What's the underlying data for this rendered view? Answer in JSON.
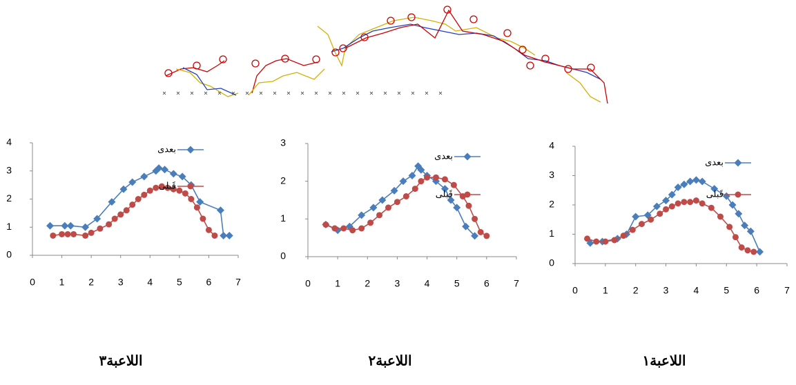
{
  "chart_data": [
    {
      "type": "line",
      "title": "اللاعبة٣",
      "xlim": [
        0,
        7
      ],
      "xticks": [
        0,
        1,
        2,
        3,
        4,
        5,
        6,
        7
      ],
      "ylim": [
        0,
        4
      ],
      "yticks": [
        0,
        1,
        2,
        3,
        4
      ],
      "grid": false,
      "series": [
        {
          "name": "بعدى",
          "color": "#4a7ebb",
          "marker": "diamond",
          "x": [
            0.6,
            1.1,
            1.3,
            1.8,
            2.2,
            2.7,
            3.1,
            3.4,
            3.8,
            4.2,
            4.3,
            4.5,
            4.8,
            5.1,
            5.4,
            5.7,
            6.4,
            6.5,
            6.7
          ],
          "values": [
            1.05,
            1.05,
            1.05,
            1.0,
            1.3,
            1.9,
            2.35,
            2.6,
            2.8,
            3.0,
            3.1,
            3.05,
            2.9,
            2.8,
            2.5,
            1.9,
            1.6,
            0.7,
            0.7
          ]
        },
        {
          "name": "قَبلى",
          "color": "#be4b48",
          "marker": "circle",
          "x": [
            0.7,
            1.0,
            1.2,
            1.4,
            1.8,
            2.0,
            2.3,
            2.6,
            2.8,
            3.0,
            3.2,
            3.4,
            3.6,
            3.8,
            4.0,
            4.2,
            4.4,
            4.6,
            4.8,
            5.0,
            5.2,
            5.4,
            5.6,
            5.8,
            6.0,
            6.2
          ],
          "values": [
            0.7,
            0.75,
            0.75,
            0.75,
            0.7,
            0.8,
            0.95,
            1.1,
            1.3,
            1.45,
            1.6,
            1.8,
            2.0,
            2.15,
            2.3,
            2.4,
            2.45,
            2.4,
            2.35,
            2.3,
            2.2,
            2.0,
            1.7,
            1.3,
            0.9,
            0.7
          ]
        }
      ]
    },
    {
      "type": "line",
      "title": "اللاعبة٢",
      "xlim": [
        0,
        7
      ],
      "xticks": [
        0,
        1,
        2,
        3,
        4,
        5,
        6,
        7
      ],
      "ylim": [
        0,
        3
      ],
      "yticks": [
        0,
        1,
        2,
        3
      ],
      "grid": false,
      "series": [
        {
          "name": "بعدى",
          "color": "#4a7ebb",
          "marker": "diamond",
          "x": [
            0.6,
            1.0,
            1.4,
            1.8,
            2.2,
            2.5,
            2.9,
            3.2,
            3.5,
            3.7,
            3.8,
            4.0,
            4.3,
            4.6,
            4.8,
            5.0,
            5.3,
            5.6
          ],
          "values": [
            0.85,
            0.7,
            0.8,
            1.1,
            1.3,
            1.5,
            1.75,
            2.0,
            2.15,
            2.4,
            2.3,
            2.15,
            2.0,
            1.8,
            1.5,
            1.3,
            0.8,
            0.55
          ]
        },
        {
          "name": "قَبلى",
          "color": "#be4b48",
          "marker": "circle",
          "x": [
            0.6,
            0.9,
            1.2,
            1.5,
            1.8,
            2.1,
            2.4,
            2.7,
            3.0,
            3.3,
            3.6,
            3.8,
            4.0,
            4.3,
            4.6,
            4.9,
            5.2,
            5.4,
            5.6,
            5.8,
            6.0
          ],
          "values": [
            0.85,
            0.75,
            0.75,
            0.7,
            0.75,
            0.9,
            1.1,
            1.3,
            1.45,
            1.6,
            1.8,
            2.0,
            2.1,
            2.1,
            2.05,
            1.9,
            1.6,
            1.35,
            1.0,
            0.65,
            0.55
          ]
        }
      ]
    },
    {
      "type": "line",
      "title": "اللاعبة١",
      "xlim": [
        0,
        7
      ],
      "xticks": [
        0,
        1,
        2,
        3,
        4,
        5,
        6,
        7
      ],
      "ylim": [
        0,
        4
      ],
      "yticks": [
        0,
        1,
        2,
        3,
        4
      ],
      "grid": false,
      "series": [
        {
          "name": "بعدى",
          "color": "#4a7ebb",
          "marker": "diamond",
          "x": [
            0.5,
            0.9,
            1.4,
            1.7,
            2.0,
            2.4,
            2.7,
            3.0,
            3.2,
            3.4,
            3.6,
            3.8,
            4.0,
            4.2,
            4.6,
            5.0,
            5.2,
            5.4,
            5.6,
            5.8,
            6.1
          ],
          "values": [
            0.7,
            0.75,
            0.85,
            1.0,
            1.6,
            1.65,
            1.95,
            2.15,
            2.35,
            2.6,
            2.7,
            2.8,
            2.85,
            2.8,
            2.55,
            2.3,
            2.0,
            1.7,
            1.3,
            1.1,
            0.4
          ]
        },
        {
          "name": "قَبلى",
          "color": "#be4b48",
          "marker": "circle",
          "x": [
            0.4,
            0.7,
            1.0,
            1.3,
            1.6,
            1.9,
            2.2,
            2.5,
            2.8,
            3.0,
            3.2,
            3.4,
            3.6,
            3.8,
            4.0,
            4.2,
            4.5,
            4.8,
            5.1,
            5.3,
            5.5,
            5.7,
            5.9
          ],
          "values": [
            0.85,
            0.75,
            0.75,
            0.8,
            0.95,
            1.15,
            1.35,
            1.5,
            1.7,
            1.85,
            1.95,
            2.05,
            2.1,
            2.1,
            2.15,
            2.05,
            1.9,
            1.6,
            1.25,
            0.9,
            0.55,
            0.45,
            0.4
          ]
        }
      ]
    }
  ]
}
